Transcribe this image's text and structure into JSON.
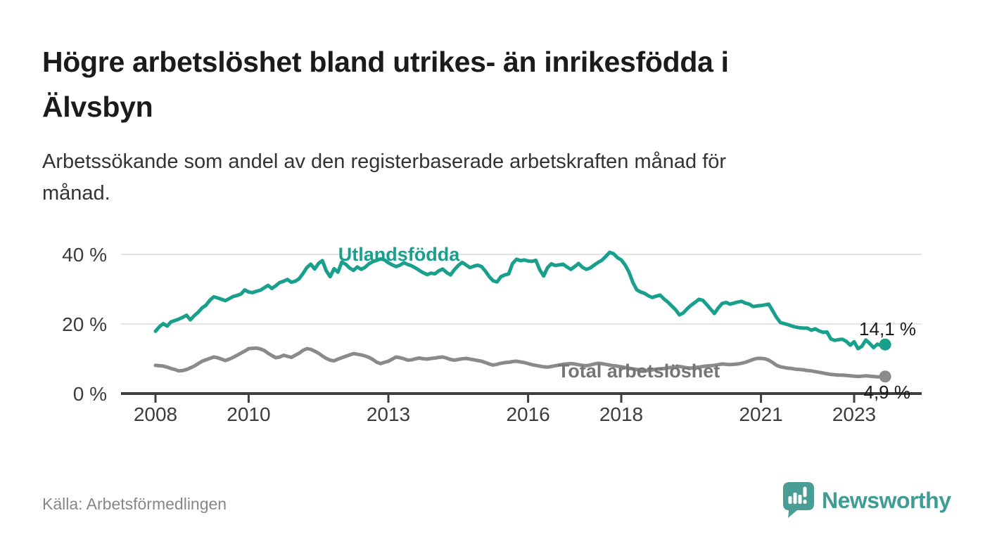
{
  "header": {
    "title": "Högre arbetslöshet bland utrikes- än inrikesfödda i\nÄlvsbyn",
    "subtitle": "Arbetssökande som andel av den registerbaserade arbetskraften månad för\nmånad."
  },
  "footer": {
    "source": "Källa: Arbetsförmedlingen",
    "brand_name": "Newsworthy"
  },
  "colors": {
    "background": "#ffffff",
    "title_text": "#1b1b1b",
    "subtitle_text": "#333333",
    "axis_line": "#3e3e3e",
    "axis_text": "#3c3c3c",
    "grid_line": "#dbdbdb",
    "end_label_text": "#1b1b1b",
    "source_text": "#878787",
    "logo_bubble": "#4a9d94",
    "logo_wordmark": "#3f9c94"
  },
  "chart_data": {
    "type": "line",
    "title": "",
    "xlabel": "",
    "ylabel": "",
    "x_start": "2008-01",
    "x_end": "2023-09",
    "frequency": "monthly",
    "x_tick_years": [
      2008,
      2010,
      2013,
      2016,
      2018,
      2021,
      2023
    ],
    "y_ticks": [
      {
        "value": 0,
        "label": "0 %"
      },
      {
        "value": 20,
        "label": "20 %"
      },
      {
        "value": 40,
        "label": "40 %"
      }
    ],
    "ylim": [
      0,
      44
    ],
    "grid": true,
    "legend_position": "inline-labels",
    "series": [
      {
        "name": "Utlandsfödda",
        "color": "#18a08d",
        "label_color": "#18a08d",
        "end_label": "14,1 %",
        "last_value": 14.1,
        "values": [
          17.9,
          19.2,
          20.1,
          19.4,
          20.6,
          21.0,
          21.4,
          21.9,
          22.5,
          21.2,
          22.4,
          23.4,
          24.6,
          25.4,
          26.8,
          27.8,
          27.5,
          27.1,
          26.7,
          27.3,
          27.9,
          28.2,
          28.6,
          29.8,
          29.2,
          29.0,
          29.4,
          29.7,
          30.4,
          31.1,
          30.2,
          31.0,
          31.9,
          32.3,
          32.8,
          32.0,
          32.3,
          33.0,
          34.5,
          36.2,
          37.2,
          35.8,
          37.4,
          38.2,
          35.3,
          33.6,
          35.9,
          34.9,
          37.8,
          37.2,
          36.1,
          35.4,
          36.4,
          35.7,
          36.3,
          37.3,
          37.9,
          38.3,
          38.7,
          38.4,
          37.6,
          37.0,
          36.5,
          36.9,
          37.6,
          37.1,
          36.7,
          36.1,
          35.4,
          34.7,
          34.2,
          34.6,
          34.4,
          35.3,
          35.8,
          34.8,
          34.1,
          35.6,
          36.8,
          37.7,
          37.0,
          36.2,
          36.6,
          36.9,
          36.5,
          35.2,
          33.6,
          32.4,
          32.1,
          33.6,
          34.1,
          34.4,
          37.4,
          38.6,
          38.2,
          38.4,
          38.1,
          38.0,
          38.3,
          35.6,
          33.8,
          36.2,
          37.3,
          36.8,
          37.0,
          37.2,
          36.4,
          35.7,
          36.5,
          37.4,
          36.3,
          35.7,
          36.1,
          36.9,
          37.7,
          38.3,
          39.4,
          40.6,
          40.2,
          39.1,
          38.4,
          37.0,
          34.9,
          31.9,
          29.8,
          29.2,
          28.8,
          28.1,
          27.6,
          28.0,
          28.3,
          27.2,
          26.3,
          25.2,
          24.1,
          22.6,
          23.2,
          24.4,
          25.4,
          26.2,
          27.1,
          26.8,
          25.6,
          24.3,
          23.0,
          24.6,
          25.9,
          26.2,
          25.7,
          26.0,
          26.3,
          26.5,
          26.0,
          25.7,
          25.0,
          25.2,
          25.3,
          25.5,
          25.7,
          23.8,
          21.9,
          20.4,
          20.1,
          19.8,
          19.4,
          19.1,
          18.9,
          18.8,
          18.8,
          18.2,
          18.6,
          18.0,
          17.6,
          17.7,
          15.7,
          15.3,
          15.5,
          15.6,
          15.0,
          13.9,
          14.9,
          12.9,
          13.6,
          15.4,
          14.4,
          13.2,
          14.2,
          13.8,
          14.1
        ]
      },
      {
        "name": "Total arbetslöshet",
        "color": "#8a8a8a",
        "label_color": "#757575",
        "end_label": "4,9 %",
        "last_value": 4.9,
        "values": [
          8.1,
          8.0,
          7.9,
          7.6,
          7.2,
          6.9,
          6.5,
          6.6,
          6.9,
          7.4,
          7.9,
          8.6,
          9.3,
          9.7,
          10.1,
          10.5,
          10.3,
          9.9,
          9.5,
          9.9,
          10.4,
          11.0,
          11.6,
          12.2,
          12.9,
          13.0,
          13.1,
          12.8,
          12.4,
          11.6,
          10.9,
          10.3,
          10.5,
          11.0,
          10.7,
          10.4,
          11.0,
          11.6,
          12.4,
          12.9,
          12.7,
          12.2,
          11.6,
          10.8,
          10.1,
          9.6,
          9.4,
          9.9,
          10.3,
          10.7,
          11.1,
          11.5,
          11.3,
          11.1,
          10.8,
          10.4,
          9.8,
          9.0,
          8.6,
          9.0,
          9.3,
          9.9,
          10.5,
          10.3,
          10.0,
          9.6,
          9.7,
          10.0,
          10.2,
          10.0,
          9.9,
          10.1,
          10.2,
          10.4,
          10.5,
          10.2,
          9.8,
          9.6,
          9.8,
          10.0,
          10.1,
          9.9,
          9.7,
          9.5,
          9.3,
          8.9,
          8.5,
          8.2,
          8.4,
          8.7,
          8.9,
          9.0,
          9.2,
          9.3,
          9.1,
          8.9,
          8.6,
          8.3,
          8.1,
          7.9,
          7.7,
          7.6,
          7.8,
          8.0,
          8.2,
          8.4,
          8.5,
          8.6,
          8.5,
          8.3,
          8.1,
          8.0,
          8.2,
          8.5,
          8.7,
          8.6,
          8.4,
          8.2,
          8.0,
          7.9,
          7.7,
          7.5,
          7.3,
          7.1,
          6.9,
          6.8,
          6.7,
          6.6,
          6.8,
          7.0,
          7.1,
          7.2,
          7.4,
          7.5,
          7.7,
          7.8,
          7.6,
          7.4,
          7.3,
          7.5,
          7.6,
          7.8,
          7.9,
          8.0,
          8.1,
          8.3,
          8.5,
          8.4,
          8.3,
          8.4,
          8.5,
          8.7,
          9.0,
          9.4,
          9.8,
          10.1,
          10.1,
          10.0,
          9.6,
          8.9,
          8.1,
          7.7,
          7.5,
          7.3,
          7.2,
          7.0,
          6.9,
          6.8,
          6.6,
          6.5,
          6.3,
          6.1,
          5.9,
          5.7,
          5.5,
          5.4,
          5.3,
          5.3,
          5.2,
          5.1,
          5.0,
          4.9,
          5.0,
          5.1,
          5.0,
          4.9,
          4.8,
          4.8,
          4.9
        ]
      }
    ]
  }
}
